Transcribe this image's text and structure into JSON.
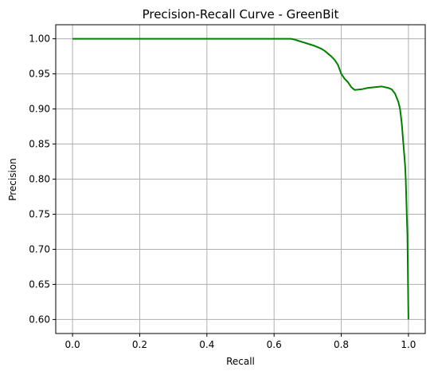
{
  "chart_data": {
    "type": "line",
    "title": "Precision-Recall Curve - GreenBit",
    "xlabel": "Recall",
    "ylabel": "Precision",
    "xlim": [
      -0.05,
      1.05
    ],
    "ylim": [
      0.58,
      1.02
    ],
    "xticks": [
      0.0,
      0.2,
      0.4,
      0.6,
      0.8,
      1.0
    ],
    "xtick_labels": [
      "0.0",
      "0.2",
      "0.4",
      "0.6",
      "0.8",
      "1.0"
    ],
    "yticks": [
      0.6,
      0.65,
      0.7,
      0.75,
      0.8,
      0.85,
      0.9,
      0.95,
      1.0
    ],
    "ytick_labels": [
      "0.60",
      "0.65",
      "0.70",
      "0.75",
      "0.80",
      "0.85",
      "0.90",
      "0.95",
      "1.00"
    ],
    "grid": true,
    "series": [
      {
        "color": "#008000",
        "x": [
          0.0,
          0.1,
          0.2,
          0.3,
          0.4,
          0.5,
          0.6,
          0.65,
          0.66,
          0.68,
          0.7,
          0.72,
          0.74,
          0.75,
          0.76,
          0.77,
          0.78,
          0.79,
          0.8,
          0.81,
          0.82,
          0.83,
          0.84,
          0.86,
          0.88,
          0.9,
          0.92,
          0.93,
          0.94,
          0.95,
          0.96,
          0.97,
          0.975,
          0.98,
          0.985,
          0.99,
          0.992,
          0.995,
          0.997,
          0.998,
          1.0
        ],
        "y": [
          1.0,
          1.0,
          1.0,
          1.0,
          1.0,
          1.0,
          1.0,
          1.0,
          0.999,
          0.996,
          0.993,
          0.99,
          0.986,
          0.983,
          0.979,
          0.975,
          0.97,
          0.963,
          0.95,
          0.943,
          0.938,
          0.931,
          0.927,
          0.928,
          0.93,
          0.931,
          0.932,
          0.931,
          0.93,
          0.928,
          0.922,
          0.91,
          0.9,
          0.88,
          0.85,
          0.82,
          0.8,
          0.75,
          0.72,
          0.68,
          0.6
        ]
      }
    ]
  }
}
